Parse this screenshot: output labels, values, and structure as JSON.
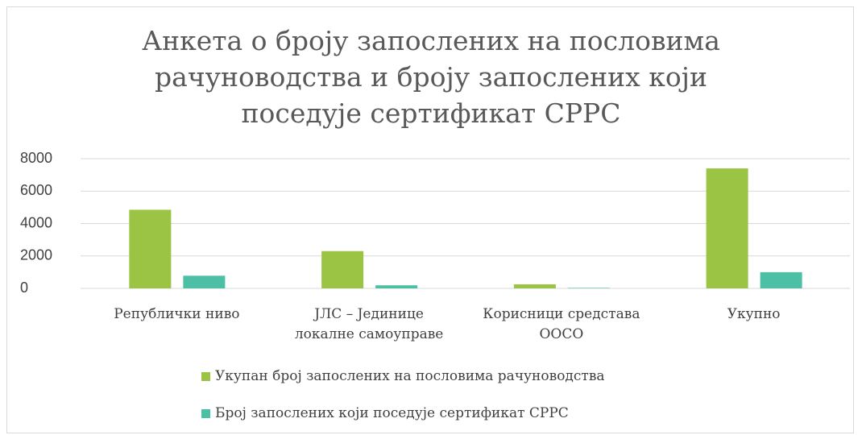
{
  "chart_data": {
    "type": "bar",
    "title": "Анкета о броју запослених на пословима рачуноводства и броју запослених који поседује сертификат СРРС",
    "categories": [
      "Републички ниво",
      "ЈЛС – Јединице локалне самоуправе",
      "Корисници средстава ООСО",
      "Укупно"
    ],
    "series": [
      {
        "name": "Укупан број запослених на пословима рачуноводства",
        "color": "#9bc444",
        "values": [
          4850,
          2300,
          250,
          7400
        ]
      },
      {
        "name": "Број запослених који поседује сертификат СРРС",
        "color": "#4dbfa4",
        "values": [
          780,
          190,
          30,
          1000
        ]
      }
    ],
    "ylim": [
      0,
      8000
    ],
    "yticks": [
      0,
      2000,
      4000,
      6000,
      8000
    ],
    "grid": true,
    "legend": "bottom"
  }
}
